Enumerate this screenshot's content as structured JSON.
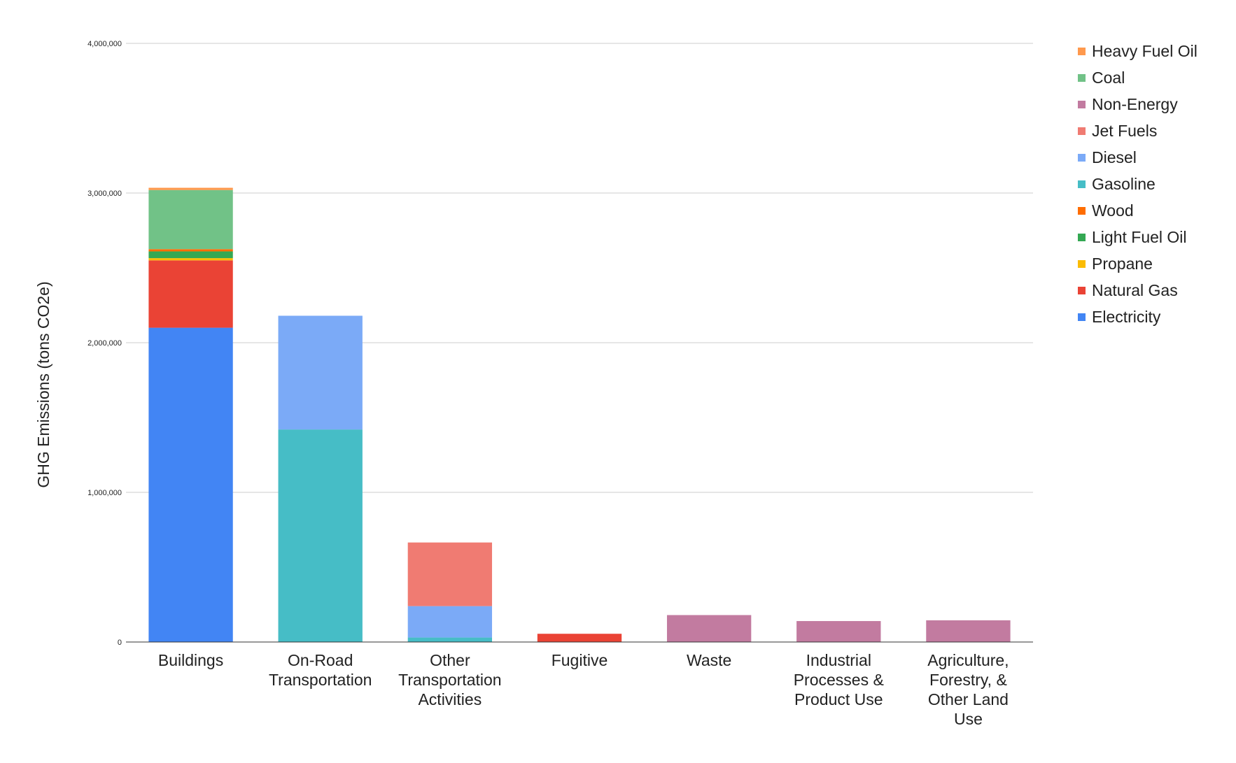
{
  "chart_data": {
    "type": "bar",
    "stacked": true,
    "ylabel": "GHG Emissions (tons CO2e)",
    "ylim": [
      0,
      4000000
    ],
    "yticks": [
      0,
      1000000,
      2000000,
      3000000,
      4000000
    ],
    "ytick_labels": [
      "0",
      "1,000,000",
      "2,000,000",
      "3,000,000",
      "4,000,000"
    ],
    "grid": true,
    "legend_position": "right",
    "categories": [
      [
        "Buildings"
      ],
      [
        "On-Road",
        "Transportation"
      ],
      [
        "Other",
        "Transportation",
        "Activities"
      ],
      [
        "Fugitive"
      ],
      [
        "Waste"
      ],
      [
        "Industrial",
        "Processes &",
        "Product Use"
      ],
      [
        "Agriculture,",
        "Forestry, &",
        "Other Land",
        "Use"
      ]
    ],
    "series": [
      {
        "name": "Electricity",
        "color": "#4285f4",
        "values": [
          2100000,
          0,
          0,
          0,
          0,
          0,
          0
        ]
      },
      {
        "name": "Natural Gas",
        "color": "#ea4335",
        "values": [
          450000,
          0,
          0,
          55000,
          0,
          0,
          0
        ]
      },
      {
        "name": "Propane",
        "color": "#fbbc04",
        "values": [
          15000,
          0,
          0,
          0,
          0,
          0,
          0
        ]
      },
      {
        "name": "Light Fuel Oil",
        "color": "#34a853",
        "values": [
          45000,
          0,
          0,
          0,
          0,
          0,
          0
        ]
      },
      {
        "name": "Wood",
        "color": "#ff6d01",
        "values": [
          15000,
          0,
          0,
          0,
          0,
          0,
          0
        ]
      },
      {
        "name": "Gasoline",
        "color": "#46bdc6",
        "values": [
          0,
          1420000,
          30000,
          0,
          0,
          0,
          0
        ]
      },
      {
        "name": "Diesel",
        "color": "#7baaf7",
        "values": [
          0,
          760000,
          210000,
          0,
          0,
          0,
          0
        ]
      },
      {
        "name": "Jet Fuels",
        "color": "#f07b72",
        "values": [
          0,
          0,
          425000,
          0,
          0,
          0,
          0
        ]
      },
      {
        "name": "Non-Energy",
        "color": "#c27ba0",
        "values": [
          0,
          0,
          0,
          0,
          180000,
          140000,
          145000
        ]
      },
      {
        "name": "Coal",
        "color": "#71c287",
        "values": [
          395000,
          0,
          0,
          0,
          0,
          0,
          0
        ]
      },
      {
        "name": "Heavy Fuel Oil",
        "color": "#ff994d",
        "values": [
          15000,
          0,
          0,
          0,
          0,
          0,
          0
        ]
      }
    ],
    "legend_order": [
      "Heavy Fuel Oil",
      "Coal",
      "Non-Energy",
      "Jet Fuels",
      "Diesel",
      "Gasoline",
      "Wood",
      "Light Fuel Oil",
      "Propane",
      "Natural Gas",
      "Electricity"
    ]
  }
}
